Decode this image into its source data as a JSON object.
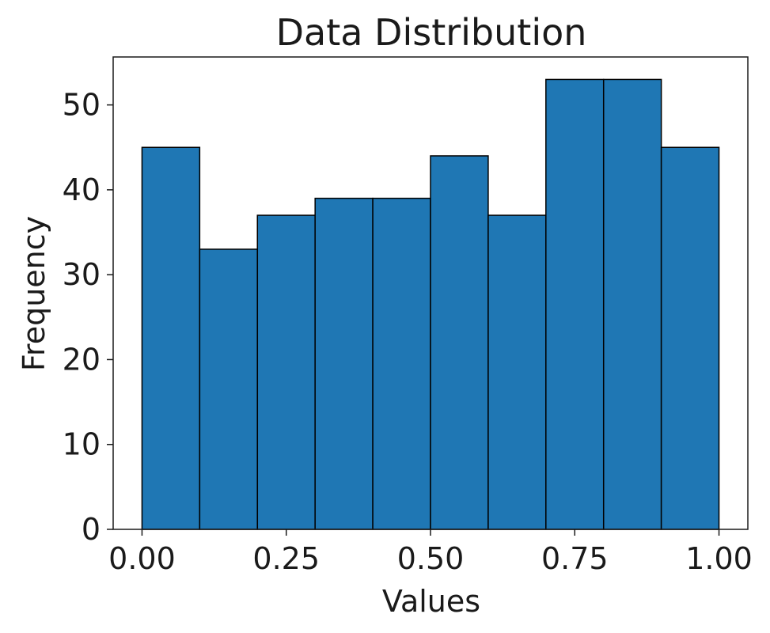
{
  "chart_data": {
    "type": "bar",
    "title": "Data Distribution",
    "xlabel": "Values",
    "ylabel": "Frequency",
    "bin_edges": [
      0.0,
      0.1,
      0.2,
      0.3,
      0.4,
      0.5,
      0.6,
      0.7,
      0.8,
      0.9,
      1.0
    ],
    "values": [
      45,
      33,
      37,
      39,
      39,
      44,
      37,
      53,
      53,
      45
    ],
    "xlim": [
      -0.05,
      1.05
    ],
    "ylim": [
      0,
      55.65
    ],
    "xticks": [
      0.0,
      0.25,
      0.5,
      0.75,
      1.0
    ],
    "xtick_labels": [
      "0.00",
      "0.25",
      "0.50",
      "0.75",
      "1.00"
    ],
    "yticks": [
      0,
      10,
      20,
      30,
      40,
      50
    ],
    "ytick_labels": [
      "0",
      "10",
      "20",
      "30",
      "40",
      "50"
    ],
    "grid": false,
    "bar_color": "#1f77b4",
    "edge_color": "#000000"
  }
}
